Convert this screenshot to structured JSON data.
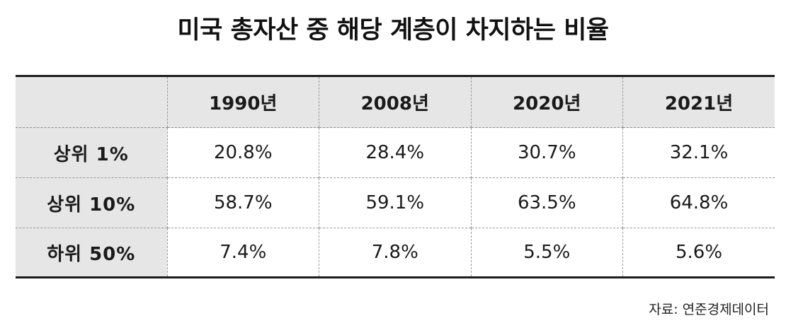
{
  "title": "미국 총자산 중 해당 계층이 차지하는 비율",
  "source": "자료: 연준경제데이터",
  "chart_data": {
    "type": "table",
    "title": "미국 총자산 중 해당 계층이 차지하는 비율",
    "corner_label": "",
    "columns": [
      "1990년",
      "2008년",
      "2020년",
      "2021년"
    ],
    "rows": [
      {
        "label": "상위 1%",
        "values": [
          "20.8%",
          "28.4%",
          "30.7%",
          "32.1%"
        ]
      },
      {
        "label": "상위 10%",
        "values": [
          "58.7%",
          "59.1%",
          "63.5%",
          "64.8%"
        ]
      },
      {
        "label": "하위 50%",
        "values": [
          "7.4%",
          "7.8%",
          "5.5%",
          "5.6%"
        ]
      }
    ],
    "source": "자료: 연준경제데이터"
  },
  "colors": {
    "header_background": "#e6e6e6",
    "rule": "#1c1c1c",
    "divider": "#9a9a9a",
    "text": "#1a1a1a"
  }
}
